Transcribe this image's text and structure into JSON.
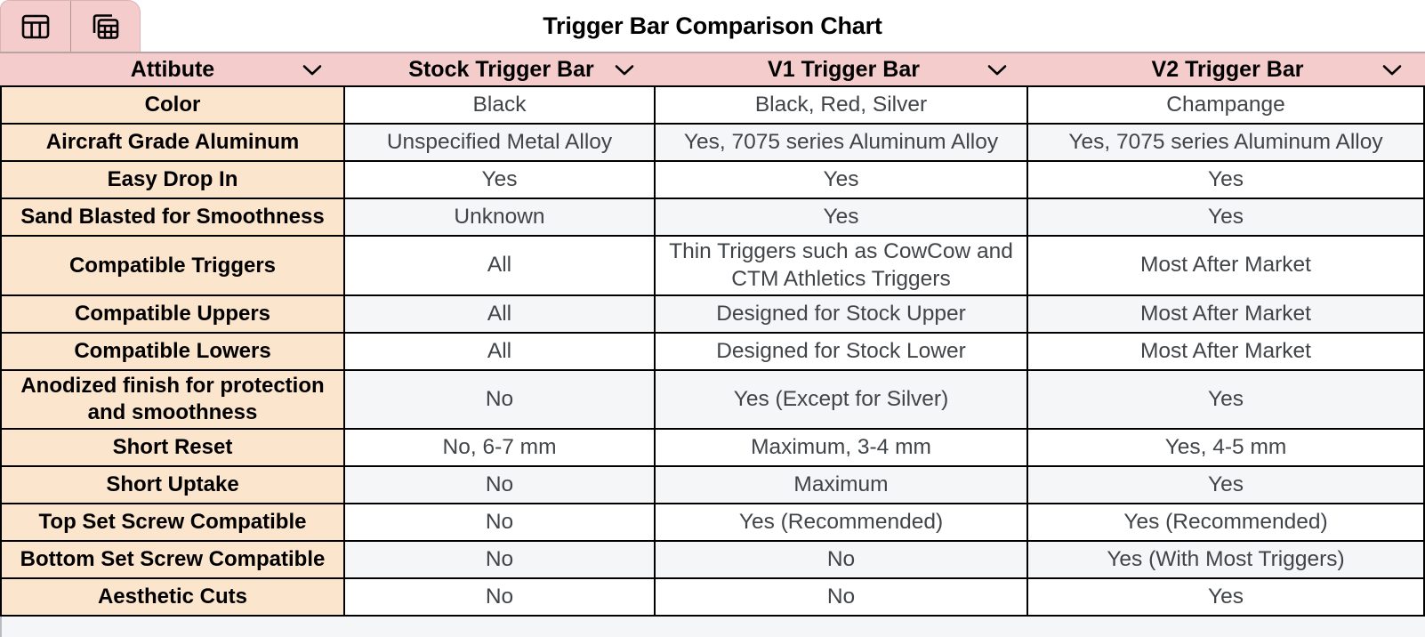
{
  "title": "Trigger Bar Comparison Chart",
  "tabs": [
    {
      "name": "table-chart-tab",
      "icon": "table-chart-icon"
    },
    {
      "name": "pivot-table-tab",
      "icon": "pivot-table-icon"
    }
  ],
  "table": {
    "columns": [
      {
        "label": "Attibute",
        "icon": "chevron-down-icon"
      },
      {
        "label": "Stock Trigger Bar",
        "icon": "chevron-down-icon"
      },
      {
        "label": "V1 Trigger Bar",
        "icon": "chevron-down-icon"
      },
      {
        "label": "V2 Trigger Bar",
        "icon": "chevron-down-icon"
      }
    ],
    "rows": [
      {
        "attribute": "Color",
        "stock": "Black",
        "v1": "Black, Red, Silver",
        "v2": "Champange"
      },
      {
        "attribute": "Aircraft Grade Aluminum",
        "stock": "Unspecified Metal Alloy",
        "v1": "Yes, 7075 series Aluminum Alloy",
        "v2": "Yes, 7075 series Aluminum Alloy"
      },
      {
        "attribute": "Easy Drop In",
        "stock": "Yes",
        "v1": "Yes",
        "v2": "Yes"
      },
      {
        "attribute": "Sand Blasted for Smoothness",
        "stock": "Unknown",
        "v1": "Yes",
        "v2": "Yes"
      },
      {
        "attribute": "Compatible Triggers",
        "stock": "All",
        "v1": "Thin Triggers such as CowCow and CTM Athletics Triggers",
        "v2": "Most After Market"
      },
      {
        "attribute": "Compatible Uppers",
        "stock": "All",
        "v1": "Designed for Stock Upper",
        "v2": "Most After Market"
      },
      {
        "attribute": "Compatible Lowers",
        "stock": "All",
        "v1": "Designed for Stock Lower",
        "v2": "Most After Market"
      },
      {
        "attribute": "Anodized finish for protection and smoothness",
        "stock": "No",
        "v1": "Yes (Except for Silver)",
        "v2": "Yes"
      },
      {
        "attribute": "Short Reset",
        "stock": "No, 6-7 mm",
        "v1": "Maximum, 3-4 mm",
        "v2": "Yes, 4-5 mm"
      },
      {
        "attribute": "Short Uptake",
        "stock": "No",
        "v1": "Maximum",
        "v2": "Yes"
      },
      {
        "attribute": "Top Set Screw Compatible",
        "stock": "No",
        "v1": "Yes (Recommended)",
        "v2": "Yes (Recommended)"
      },
      {
        "attribute": "Bottom Set Screw Compatible",
        "stock": "No",
        "v1": "No",
        "v2": "Yes (With Most Triggers)"
      },
      {
        "attribute": "Aesthetic Cuts",
        "stock": "No",
        "v1": "No",
        "v2": "Yes"
      }
    ]
  },
  "colors": {
    "header_pink": "#f4cccc",
    "attribute_peach": "#fce5cd",
    "row_white": "#ffffff",
    "row_gray": "#f5f6f8",
    "grid_black": "#000000",
    "data_text_gray": "#414448",
    "header_hairline": "#b9a2a3"
  }
}
